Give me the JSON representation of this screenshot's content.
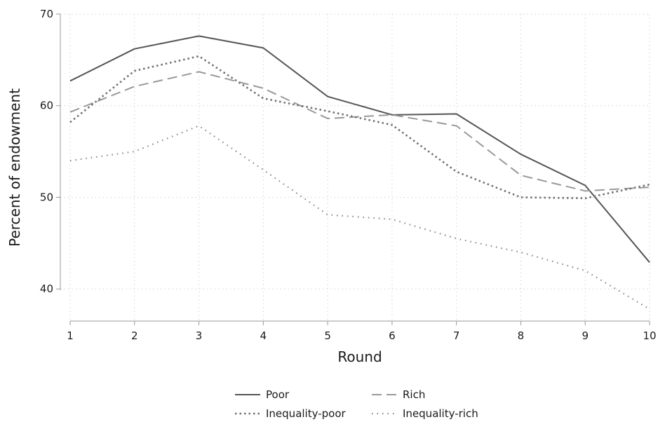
{
  "chart_data": {
    "type": "line",
    "title": "",
    "xlabel": "Round",
    "ylabel": "Percent of endowment",
    "x": [
      1,
      2,
      3,
      4,
      5,
      6,
      7,
      8,
      9,
      10
    ],
    "xlim": [
      1,
      10
    ],
    "ylim": [
      36.5,
      70
    ],
    "xticks": [
      1,
      2,
      3,
      4,
      5,
      6,
      7,
      8,
      9,
      10
    ],
    "yticks": [
      40,
      50,
      60,
      70
    ],
    "grid": true,
    "legend_position": "bottom",
    "series": [
      {
        "name": "Poor",
        "values": [
          62.7,
          66.2,
          67.6,
          66.3,
          61.0,
          59.0,
          59.1,
          54.7,
          51.3,
          42.9
        ],
        "color": "#555555",
        "style": "solid"
      },
      {
        "name": "Rich",
        "values": [
          59.3,
          62.1,
          63.7,
          61.9,
          58.6,
          59.0,
          57.8,
          52.4,
          50.7,
          51.1
        ],
        "color": "#999999",
        "style": "dashed"
      },
      {
        "name": "Inequality-poor",
        "values": [
          58.2,
          63.8,
          65.4,
          60.8,
          59.4,
          57.9,
          52.8,
          50.0,
          49.9,
          51.4
        ],
        "color": "#707070",
        "style": "dotted"
      },
      {
        "name": "Inequality-rich",
        "values": [
          54.0,
          55.0,
          57.8,
          53.0,
          48.1,
          47.6,
          45.5,
          44.0,
          42.0,
          37.8
        ],
        "color": "#888888",
        "style": "sparse-dotted"
      }
    ]
  }
}
